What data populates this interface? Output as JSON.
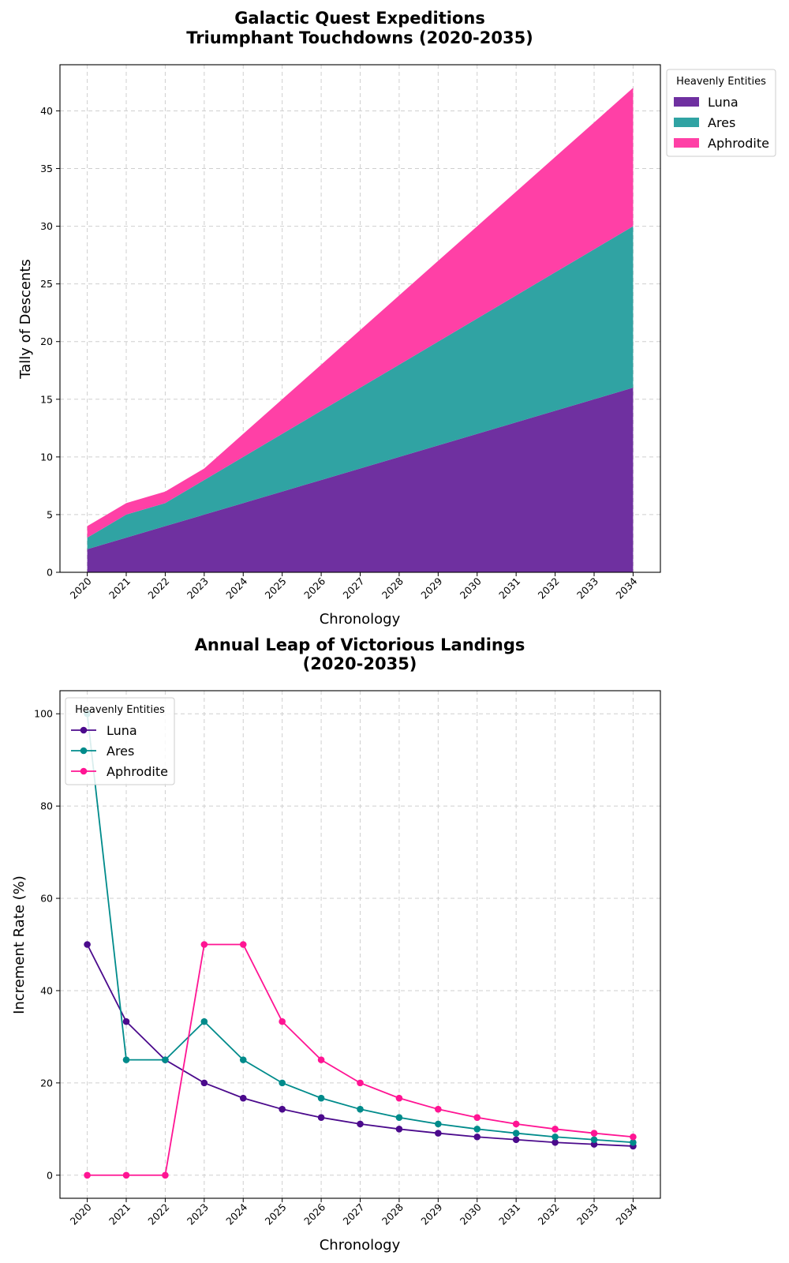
{
  "chart_data": [
    {
      "type": "area",
      "stacked": true,
      "title": "Galactic Quest Expeditions\nTriumphant Touchdowns (2020-2035)",
      "xlabel": "Chronology",
      "ylabel": "Tally of Descents",
      "x": [
        2020,
        2021,
        2022,
        2023,
        2024,
        2025,
        2026,
        2027,
        2028,
        2029,
        2030,
        2031,
        2032,
        2033,
        2034
      ],
      "ylim": [
        0,
        44
      ],
      "yticks": [
        0,
        5,
        10,
        15,
        20,
        25,
        30,
        35,
        40
      ],
      "grid": true,
      "legend": {
        "title": "Heavenly Entities",
        "placement": "outside-top-right"
      },
      "series": [
        {
          "name": "Luna",
          "color": "#6f30a0",
          "values": [
            2,
            3,
            4,
            5,
            6,
            7,
            8,
            9,
            10,
            11,
            12,
            13,
            14,
            15,
            16
          ]
        },
        {
          "name": "Ares",
          "color": "#30a3a3",
          "values": [
            1,
            2,
            2,
            3,
            4,
            5,
            6,
            7,
            8,
            9,
            10,
            11,
            12,
            13,
            14
          ]
        },
        {
          "name": "Aphrodite",
          "color": "#ff40a6",
          "values": [
            1,
            1,
            1,
            1,
            2,
            3,
            4,
            5,
            6,
            7,
            8,
            9,
            10,
            11,
            12
          ]
        }
      ]
    },
    {
      "type": "line",
      "title": "Annual Leap of Victorious Landings\n(2020-2035)",
      "xlabel": "Chronology",
      "ylabel": "Increment Rate (%)",
      "x": [
        2020,
        2021,
        2022,
        2023,
        2024,
        2025,
        2026,
        2027,
        2028,
        2029,
        2030,
        2031,
        2032,
        2033,
        2034
      ],
      "ylim": [
        -5,
        105
      ],
      "yticks": [
        0,
        20,
        40,
        60,
        80,
        100
      ],
      "grid": true,
      "legend": {
        "title": "Heavenly Entities",
        "placement": "top-left"
      },
      "series": [
        {
          "name": "Luna",
          "color": "#4b0a8c",
          "values": [
            50,
            33.3,
            25,
            20,
            16.7,
            14.3,
            12.5,
            11.1,
            10,
            9.1,
            8.3,
            7.7,
            7.1,
            6.7,
            6.3
          ]
        },
        {
          "name": "Ares",
          "color": "#008b8b",
          "values": [
            100,
            25,
            25,
            33.3,
            25,
            20,
            16.7,
            14.3,
            12.5,
            11.1,
            10,
            9.1,
            8.3,
            7.7,
            7.1
          ]
        },
        {
          "name": "Aphrodite",
          "color": "#ff1493",
          "values": [
            0,
            0,
            0,
            50,
            50,
            33.3,
            25,
            20,
            16.7,
            14.3,
            12.5,
            11.1,
            10,
            9.1,
            8.3
          ]
        }
      ]
    }
  ]
}
